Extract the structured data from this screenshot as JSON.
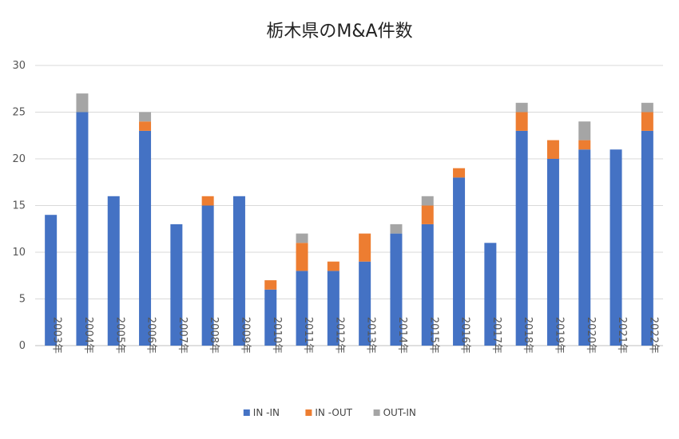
{
  "chart_data": {
    "type": "bar",
    "stacked": true,
    "title": "栃木県のM&A件数",
    "xlabel": "",
    "ylabel": "",
    "ylim": [
      0,
      30
    ],
    "yticks": [
      0,
      5,
      10,
      15,
      20,
      25,
      30
    ],
    "grid": true,
    "legend_position": "bottom",
    "categories": [
      "2003年",
      "2004年",
      "2005年",
      "2006年",
      "2007年",
      "2008年",
      "2009年",
      "2010年",
      "2011年",
      "2012年",
      "2013年",
      "2014年",
      "2015年",
      "2016年",
      "2017年",
      "2018年",
      "2019年",
      "2020年",
      "2021年",
      "2022年"
    ],
    "series": [
      {
        "name": "IN -IN",
        "color": "#4472C4",
        "values": [
          14,
          25,
          16,
          23,
          13,
          15,
          16,
          6,
          8,
          8,
          9,
          12,
          13,
          18,
          11,
          23,
          20,
          21,
          21,
          23
        ]
      },
      {
        "name": "IN -OUT",
        "color": "#ED7D31",
        "values": [
          0,
          0,
          0,
          1,
          0,
          1,
          0,
          1,
          3,
          1,
          3,
          0,
          2,
          1,
          0,
          2,
          2,
          1,
          0,
          2
        ]
      },
      {
        "name": "OUT-IN",
        "color": "#A5A5A5",
        "values": [
          0,
          2,
          0,
          1,
          0,
          0,
          0,
          0,
          1,
          0,
          0,
          1,
          1,
          0,
          0,
          1,
          0,
          2,
          0,
          1
        ]
      }
    ]
  }
}
